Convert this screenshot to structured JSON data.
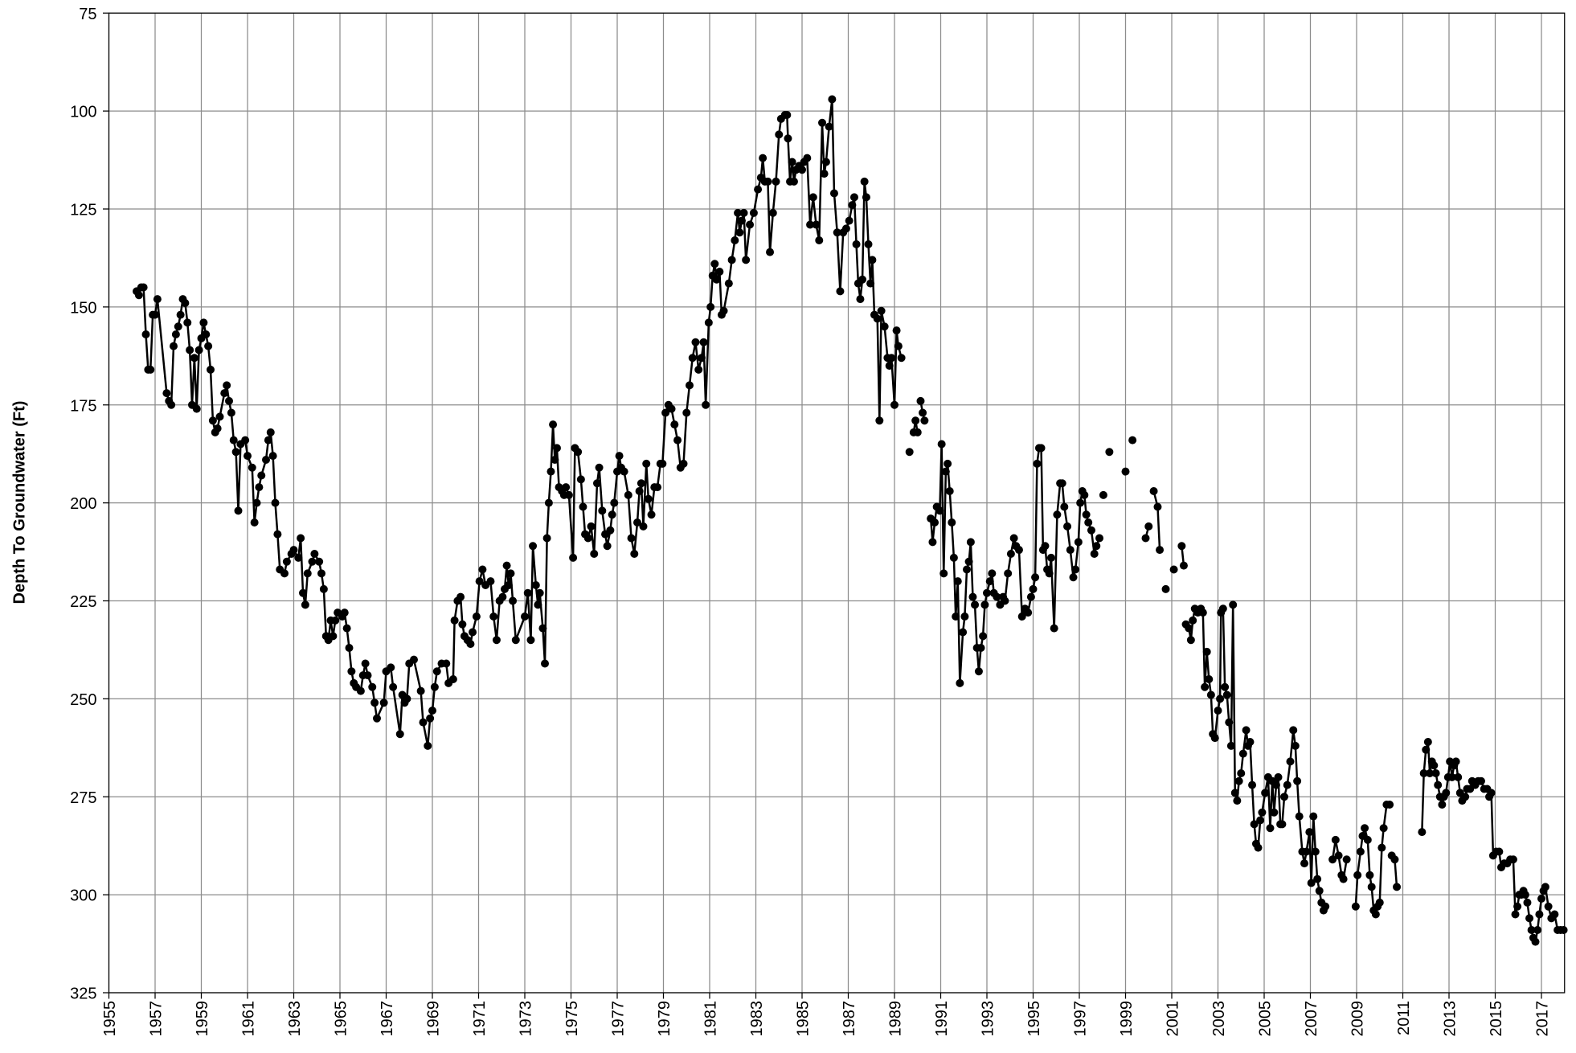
{
  "chart_data": {
    "type": "line",
    "y_label": "Depth To Groundwater (Ft)",
    "color": "#000000",
    "markers": true,
    "grid": true,
    "y_inverted": true,
    "xlim": [
      1955,
      2018
    ],
    "ylim": [
      75,
      325
    ],
    "xticks": [
      1955,
      1957,
      1959,
      1961,
      1963,
      1965,
      1967,
      1969,
      1971,
      1973,
      1975,
      1977,
      1979,
      1981,
      1983,
      1985,
      1987,
      1989,
      1991,
      1993,
      1995,
      1997,
      1999,
      2001,
      2003,
      2005,
      2007,
      2009,
      2011,
      2013,
      2015,
      2017
    ],
    "yticks": [
      75,
      100,
      125,
      150,
      175,
      200,
      225,
      250,
      275,
      300,
      325
    ],
    "x": [
      1956.2,
      1956.3,
      1956.4,
      1956.5,
      1956.6,
      1956.7,
      1956.8,
      1956.9,
      1957.0,
      1957.1,
      1957.5,
      1957.6,
      1957.7,
      1957.8,
      1957.9,
      1958.0,
      1958.1,
      1958.2,
      1958.3,
      1958.4,
      1958.5,
      1958.6,
      1958.7,
      1958.8,
      1958.9,
      1959.0,
      1959.1,
      1959.2,
      1959.3,
      1959.4,
      1959.5,
      1959.6,
      1959.7,
      1959.8,
      1960.0,
      1960.1,
      1960.2,
      1960.3,
      1960.4,
      1960.5,
      1960.6,
      1960.7,
      1960.9,
      1961.0,
      1961.2,
      1961.3,
      1961.4,
      1961.5,
      1961.6,
      1961.8,
      1961.9,
      1962.0,
      1962.1,
      1962.2,
      1962.3,
      1962.4,
      1962.6,
      1962.7,
      1962.9,
      1963.0,
      1963.2,
      1963.3,
      1963.4,
      1963.5,
      1963.6,
      1963.8,
      1963.9,
      1964.1,
      1964.2,
      1964.3,
      1964.4,
      1964.5,
      1964.6,
      1964.7,
      1964.8,
      1964.9,
      1965.1,
      1965.2,
      1965.3,
      1965.4,
      1965.5,
      1965.6,
      1965.7,
      1965.9,
      1966.0,
      1966.1,
      1966.2,
      1966.4,
      1966.5,
      1966.6,
      1966.9,
      1967.0,
      1967.2,
      1967.3,
      1967.6,
      1967.7,
      1967.8,
      1967.9,
      1968.0,
      1968.2,
      1968.5,
      1968.6,
      1968.8,
      1968.9,
      1969.0,
      1969.1,
      1969.2,
      1969.4,
      1969.6,
      1969.7,
      1969.9,
      1969.96,
      1970.09,
      1970.22,
      1970.3,
      1970.39,
      1970.52,
      1970.65,
      1970.74,
      1970.91,
      1971.04,
      1971.17,
      1971.3,
      1971.52,
      1971.65,
      1971.78,
      1971.91,
      1972.04,
      1972.13,
      1972.22,
      1972.3,
      1972.39,
      1972.48,
      1972.61,
      1973.0,
      1973.13,
      1973.26,
      1973.35,
      1973.48,
      1973.57,
      1973.65,
      1973.78,
      1973.87,
      1973.96,
      1974.04,
      1974.13,
      1974.22,
      1974.3,
      1974.39,
      1974.48,
      1974.61,
      1974.7,
      1974.78,
      1974.91,
      1975.09,
      1975.17,
      1975.3,
      1975.43,
      1975.52,
      1975.61,
      1975.74,
      1975.87,
      1976.0,
      1976.13,
      1976.22,
      1976.35,
      1976.48,
      1976.57,
      1976.7,
      1976.78,
      1976.87,
      1977.0,
      1977.09,
      1977.17,
      1977.3,
      1977.48,
      1977.61,
      1977.74,
      1977.87,
      1977.96,
      1978.04,
      1978.13,
      1978.26,
      1978.35,
      1978.48,
      1978.61,
      1978.74,
      1978.87,
      1978.96,
      1979.09,
      1979.22,
      1979.35,
      1979.48,
      1979.61,
      1979.74,
      1979.87,
      1980.0,
      1980.13,
      1980.26,
      1980.39,
      1980.52,
      1980.65,
      1980.74,
      1980.83,
      1980.96,
      1981.04,
      1981.13,
      1981.22,
      1981.3,
      1981.43,
      1981.52,
      1981.61,
      1981.83,
      1981.96,
      1982.09,
      1982.22,
      1982.3,
      1982.39,
      1982.48,
      1982.57,
      1982.74,
      1982.91,
      1983.09,
      1983.22,
      1983.3,
      1983.39,
      1983.52,
      1983.61,
      1983.74,
      1983.87,
      1984.0,
      1984.09,
      1984.26,
      1984.35,
      1984.39,
      1984.48,
      1984.57,
      1984.65,
      1984.74,
      1984.87,
      1985.0,
      1985.09,
      1985.22,
      1985.35,
      1985.48,
      1985.61,
      1985.74,
      1985.87,
      1985.96,
      1986.04,
      1986.17,
      1986.3,
      1986.39,
      1986.52,
      1986.65,
      1986.78,
      1986.91,
      1987.04,
      1987.17,
      1987.26,
      1987.35,
      1987.43,
      1987.52,
      1987.61,
      1987.7,
      1987.78,
      1987.87,
      1987.96,
      1988.04,
      1988.13,
      1988.26,
      1988.35,
      1988.43,
      1988.57,
      1988.7,
      1988.78,
      1988.87,
      1989.0,
      1989.09,
      1989.17,
      1989.3,
      null,
      1989.65,
      null,
      1989.83,
      1989.91,
      1990.0,
      null,
      1990.13,
      1990.22,
      1990.3,
      null,
      1990.57,
      1990.65,
      1990.74,
      1990.83,
      1990.96,
      1991.04,
      1991.13,
      1991.22,
      1991.3,
      1991.39,
      1991.48,
      1991.57,
      1991.65,
      1991.74,
      1991.83,
      1991.96,
      1992.04,
      1992.13,
      1992.22,
      1992.3,
      1992.39,
      1992.48,
      1992.57,
      1992.65,
      1992.74,
      1992.83,
      1992.91,
      1993.0,
      1993.13,
      1993.22,
      1993.3,
      1993.43,
      1993.57,
      1993.7,
      1993.78,
      1993.91,
      1994.04,
      1994.17,
      1994.26,
      1994.39,
      1994.52,
      1994.65,
      1994.78,
      1994.91,
      1995.0,
      1995.09,
      1995.17,
      1995.26,
      1995.35,
      1995.43,
      1995.52,
      1995.61,
      1995.7,
      1995.78,
      1995.91,
      1996.04,
      1996.17,
      1996.26,
      1996.35,
      1996.48,
      1996.61,
      1996.74,
      1996.83,
      1996.96,
      1997.04,
      1997.13,
      1997.22,
      1997.3,
      1997.39,
      1997.52,
      1997.65,
      1997.74,
      1997.87,
      null,
      1998.04,
      null,
      1998.3,
      null,
      1999.0,
      null,
      1999.3,
      null,
      1999.87,
      2000.0,
      null,
      2000.22,
      2000.39,
      2000.48,
      null,
      2000.74,
      null,
      2001.09,
      null,
      2001.43,
      2001.52,
      null,
      2001.61,
      2001.74,
      2001.83,
      2001.91,
      2002.0,
      2002.13,
      2002.26,
      2002.35,
      2002.43,
      2002.52,
      2002.61,
      2002.7,
      2002.78,
      2002.87,
      2003.0,
      2003.09,
      2003.13,
      2003.22,
      2003.3,
      2003.39,
      2003.48,
      2003.57,
      2003.65,
      2003.74,
      2003.83,
      2003.91,
      2004.0,
      2004.09,
      2004.22,
      2004.3,
      2004.39,
      2004.48,
      2004.57,
      2004.65,
      2004.74,
      2004.83,
      2004.91,
      2005.04,
      2005.17,
      2005.26,
      2005.35,
      2005.43,
      2005.52,
      2005.61,
      2005.7,
      2005.78,
      2005.87,
      2006.0,
      2006.13,
      2006.26,
      2006.35,
      2006.43,
      2006.52,
      2006.65,
      2006.74,
      2006.83,
      2006.96,
      2007.04,
      2007.13,
      2007.22,
      2007.3,
      2007.39,
      2007.48,
      2007.57,
      2007.65,
      null,
      2007.96,
      2008.09,
      2008.22,
      2008.35,
      2008.43,
      2008.57,
      null,
      2008.96,
      2009.04,
      2009.17,
      2009.26,
      2009.35,
      2009.48,
      2009.57,
      2009.65,
      2009.74,
      2009.83,
      2009.91,
      2010.0,
      2010.09,
      2010.17,
      2010.3,
      2010.43,
      null,
      2010.52,
      2010.65,
      2010.74,
      null,
      2011.83,
      2011.91,
      2012.0,
      2012.09,
      2012.17,
      2012.26,
      2012.35,
      2012.43,
      2012.52,
      2012.61,
      2012.7,
      2012.78,
      2012.87,
      2012.96,
      2013.04,
      2013.13,
      2013.22,
      2013.3,
      2013.39,
      2013.48,
      2013.57,
      2013.7,
      2013.78,
      2013.91,
      2014.0,
      2014.13,
      2014.26,
      2014.39,
      2014.52,
      2014.65,
      2014.74,
      2014.83,
      2014.91,
      2015.04,
      2015.17,
      2015.26,
      2015.39,
      2015.52,
      2015.65,
      2015.78,
      2015.87,
      2015.96,
      2016.04,
      2016.13,
      2016.22,
      2016.3,
      2016.39,
      2016.48,
      2016.57,
      2016.65,
      2016.74,
      2016.83,
      2016.91,
      2017.0,
      2017.09,
      2017.17,
      2017.3,
      2017.43,
      2017.57,
      2017.7,
      2017.83,
      2017.96
    ],
    "values": [
      146,
      147,
      145,
      145,
      157,
      166,
      166,
      152,
      152,
      148,
      172,
      174,
      175,
      160,
      157,
      155,
      152,
      148,
      149,
      154,
      161,
      175,
      163,
      176,
      161,
      158,
      154,
      157,
      160,
      166,
      179,
      182,
      181,
      178,
      172,
      170,
      174,
      177,
      184,
      187,
      202,
      185,
      184,
      188,
      191,
      205,
      200,
      196,
      193,
      189,
      184,
      182,
      188,
      200,
      208,
      217,
      218,
      215,
      213,
      212,
      214,
      209,
      223,
      226,
      218,
      215,
      213,
      215,
      218,
      222,
      234,
      235,
      230,
      234,
      230,
      228,
      229,
      228,
      232,
      237,
      243,
      246,
      247,
      248,
      244,
      241,
      244,
      247,
      251,
      255,
      251,
      243,
      242,
      247,
      259,
      249,
      251,
      250,
      241,
      240,
      248,
      256,
      262,
      255,
      253,
      247,
      243,
      241,
      241,
      246,
      245,
      230,
      225,
      224,
      231,
      234,
      235,
      236,
      233,
      229,
      220,
      217,
      221,
      220,
      229,
      235,
      225,
      224,
      222,
      216,
      221,
      218,
      225,
      235,
      229,
      223,
      235,
      211,
      221,
      226,
      223,
      232,
      241,
      209,
      200,
      192,
      180,
      189,
      186,
      196,
      197,
      198,
      196,
      198,
      214,
      186,
      187,
      194,
      201,
      208,
      209,
      206,
      213,
      195,
      191,
      202,
      208,
      211,
      207,
      203,
      200,
      192,
      188,
      191,
      192,
      198,
      209,
      213,
      205,
      197,
      195,
      206,
      190,
      199,
      203,
      196,
      196,
      190,
      190,
      177,
      175,
      176,
      180,
      184,
      191,
      190,
      177,
      170,
      163,
      159,
      166,
      163,
      159,
      175,
      154,
      150,
      142,
      139,
      143,
      141,
      152,
      151,
      144,
      138,
      133,
      126,
      131,
      128,
      126,
      138,
      129,
      126,
      120,
      117,
      112,
      118,
      118,
      136,
      126,
      118,
      106,
      102,
      101,
      101,
      107,
      118,
      113,
      118,
      115,
      114,
      115,
      113,
      112,
      129,
      122,
      129,
      133,
      103,
      116,
      113,
      104,
      97,
      121,
      131,
      146,
      131,
      130,
      128,
      124,
      122,
      134,
      144,
      148,
      143,
      118,
      122,
      134,
      144,
      138,
      152,
      153,
      179,
      151,
      155,
      163,
      165,
      163,
      175,
      156,
      160,
      163,
      null,
      187,
      null,
      182,
      179,
      182,
      null,
      174,
      177,
      179,
      null,
      204,
      210,
      205,
      201,
      202,
      185,
      218,
      192,
      190,
      197,
      205,
      214,
      229,
      220,
      246,
      233,
      229,
      217,
      215,
      210,
      224,
      226,
      237,
      243,
      237,
      234,
      226,
      223,
      220,
      218,
      223,
      224,
      226,
      224,
      225,
      218,
      213,
      209,
      211,
      212,
      229,
      227,
      228,
      224,
      222,
      219,
      190,
      186,
      186,
      212,
      211,
      217,
      218,
      214,
      232,
      203,
      195,
      195,
      201,
      206,
      212,
      219,
      217,
      210,
      200,
      197,
      198,
      203,
      205,
      207,
      213,
      211,
      209,
      null,
      198,
      null,
      187,
      null,
      192,
      null,
      184,
      null,
      209,
      206,
      null,
      197,
      201,
      212,
      null,
      222,
      null,
      217,
      null,
      211,
      216,
      null,
      231,
      232,
      235,
      230,
      227,
      228,
      227,
      228,
      247,
      238,
      245,
      249,
      259,
      260,
      253,
      250,
      228,
      227,
      247,
      249,
      256,
      262,
      226,
      274,
      276,
      271,
      269,
      264,
      258,
      262,
      261,
      272,
      282,
      287,
      288,
      281,
      279,
      274,
      270,
      283,
      271,
      279,
      272,
      270,
      282,
      282,
      275,
      272,
      266,
      258,
      262,
      271,
      280,
      289,
      292,
      289,
      284,
      297,
      280,
      289,
      296,
      299,
      302,
      304,
      303,
      null,
      291,
      286,
      290,
      295,
      296,
      291,
      null,
      303,
      295,
      289,
      285,
      283,
      286,
      295,
      298,
      304,
      305,
      303,
      302,
      288,
      283,
      277,
      277,
      null,
      290,
      291,
      298,
      null,
      284,
      269,
      263,
      261,
      269,
      266,
      267,
      269,
      272,
      275,
      277,
      275,
      274,
      270,
      266,
      270,
      267,
      266,
      270,
      274,
      276,
      275,
      273,
      273,
      271,
      272,
      271,
      271,
      273,
      273,
      275,
      274,
      290,
      289,
      289,
      293,
      292,
      292,
      291,
      291,
      305,
      303,
      300,
      300,
      299,
      300,
      302,
      306,
      309,
      311,
      312,
      309,
      305,
      301,
      299,
      298,
      303,
      306,
      305,
      309,
      309,
      309
    ]
  }
}
